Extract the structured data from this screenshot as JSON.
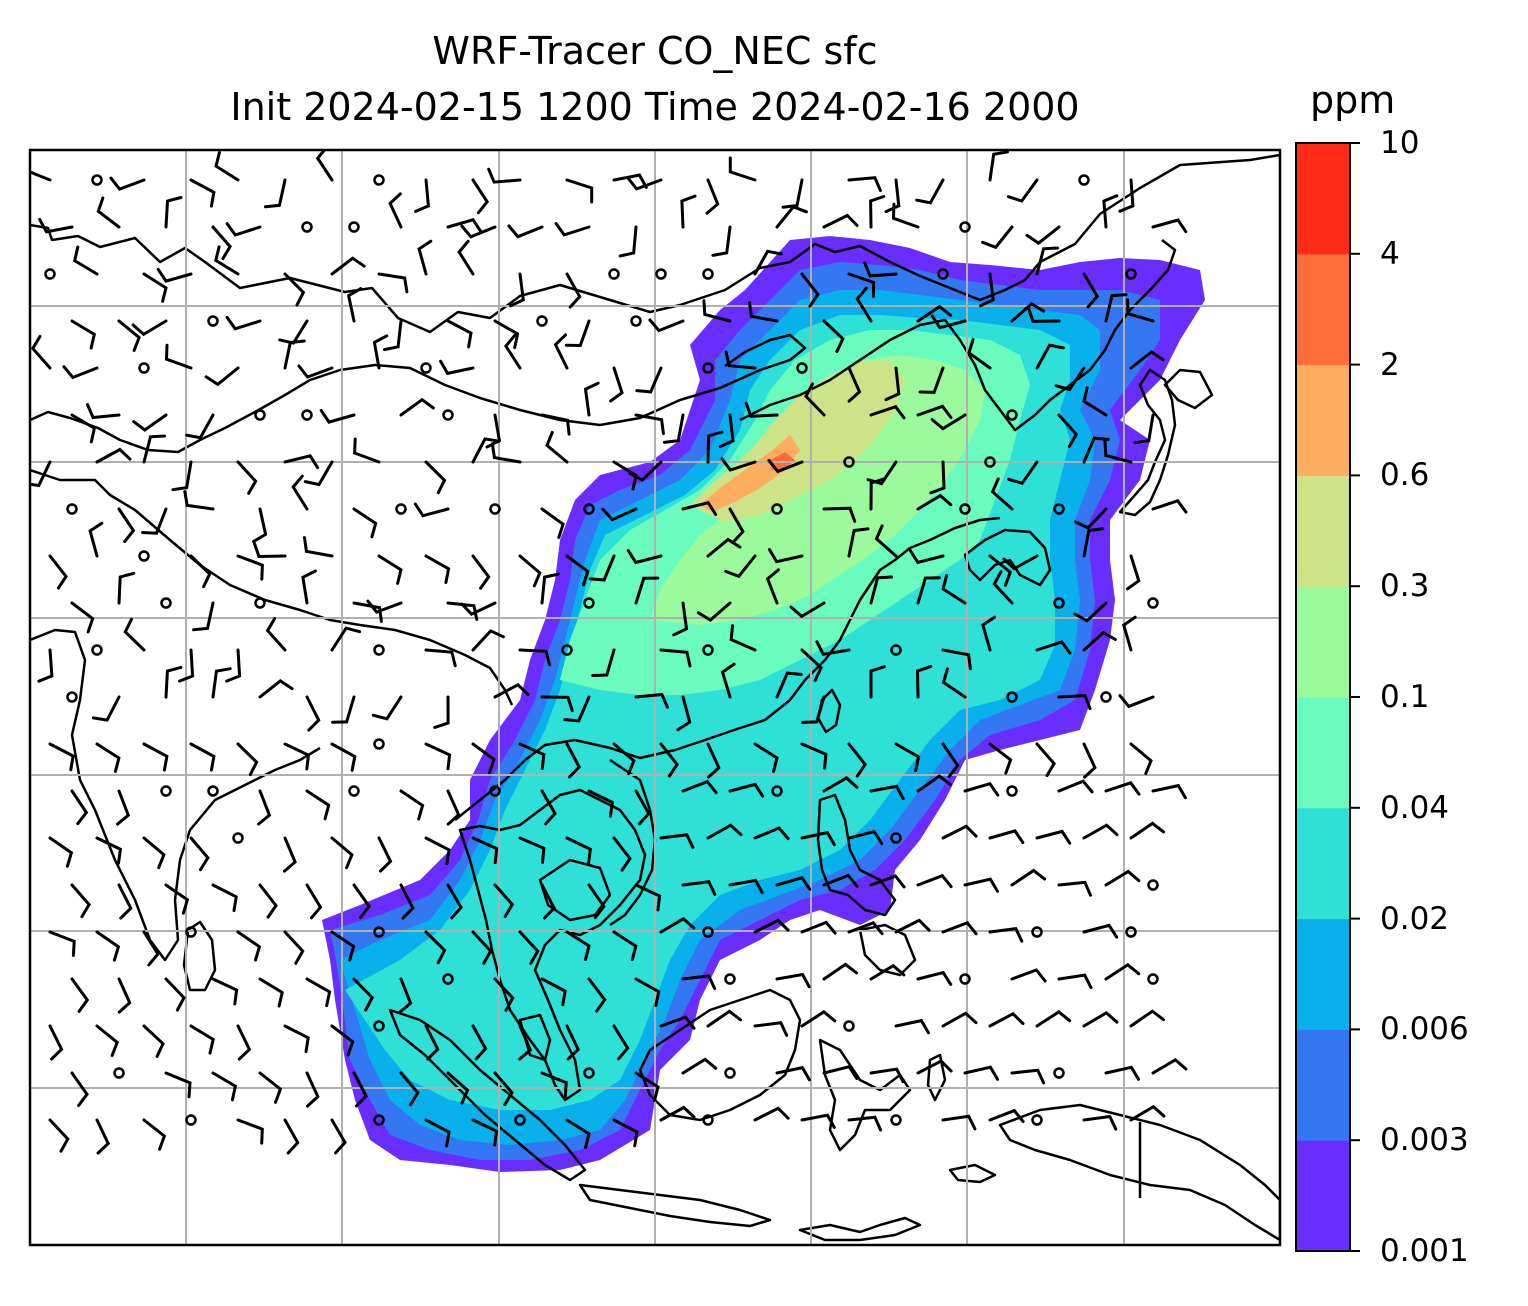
{
  "title": {
    "line1": "WRF-Tracer CO_NEC sfc",
    "line2": "Init 2024-02-15 1200 Time 2024-02-16 2000"
  },
  "colorbar": {
    "unit": "ppm",
    "levels": [
      "0.001",
      "0.003",
      "0.006",
      "0.02",
      "0.04",
      "0.1",
      "0.3",
      "0.6",
      "2",
      "4",
      "10"
    ],
    "colors": [
      "#6a2dff",
      "#3377f2",
      "#09b1ec",
      "#2fe0d6",
      "#6afbbf",
      "#9bfa9c",
      "#cee287",
      "#fdad5f",
      "#fe6d3a",
      "#ff2a18"
    ]
  },
  "map": {
    "background": "#ffffff",
    "gridlines": true,
    "gridline_color": "#b0b0b0",
    "coastline_color": "#000000",
    "wind_barbs": true
  }
}
